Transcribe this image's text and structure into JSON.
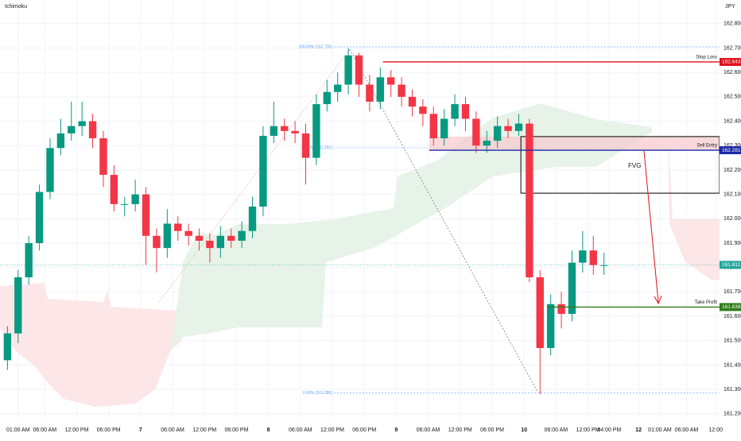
{
  "chart_data": {
    "type": "candlestick",
    "indicator": "Ichimoku",
    "currency": "JPY",
    "up_color": "#089981",
    "down_color": "#f23645",
    "grid": true,
    "x": [
      -1,
      1,
      3,
      5,
      7,
      9,
      11,
      13,
      15,
      17,
      19,
      21,
      23,
      25,
      27,
      29,
      31,
      33,
      35,
      37,
      39,
      41,
      43,
      45,
      47,
      49,
      51,
      53,
      55,
      57,
      59,
      61,
      63,
      65,
      67,
      69,
      71,
      73,
      75,
      77,
      79,
      81,
      83,
      85,
      87,
      89,
      91,
      93,
      95,
      97,
      99,
      101,
      103,
      105,
      107,
      109,
      111
    ],
    "open": [
      161.42,
      161.53,
      161.76,
      161.9,
      162.11,
      162.29,
      162.35,
      162.38,
      162.4,
      162.33,
      162.18,
      162.06,
      162.06,
      162.1,
      161.93,
      161.88,
      161.98,
      161.95,
      161.93,
      161.91,
      161.88,
      161.93,
      161.91,
      161.95,
      162.05,
      162.34,
      162.38,
      162.36,
      162.35,
      162.25,
      162.47,
      162.52,
      162.55,
      162.67,
      162.55,
      162.48,
      162.58,
      162.55,
      162.5,
      162.46,
      162.43,
      162.33,
      162.41,
      162.47,
      162.41,
      162.3,
      162.32,
      162.38,
      162.36,
      162.39,
      161.76,
      161.47,
      161.65,
      161.61,
      161.82,
      161.87,
      161.81
    ],
    "high": [
      161.56,
      161.79,
      161.93,
      162.14,
      162.33,
      162.41,
      162.48,
      162.48,
      162.43,
      162.36,
      162.22,
      162.09,
      162.16,
      162.13,
      161.96,
      162.04,
      162.01,
      161.98,
      161.96,
      161.94,
      161.97,
      161.96,
      161.99,
      162.09,
      162.38,
      162.48,
      162.41,
      162.4,
      162.39,
      162.51,
      162.57,
      162.6,
      162.7,
      162.68,
      162.59,
      162.62,
      162.61,
      162.58,
      162.53,
      162.49,
      162.46,
      162.45,
      162.51,
      162.5,
      162.44,
      162.36,
      162.42,
      162.41,
      162.43,
      162.41,
      161.79,
      161.69,
      161.7,
      161.87,
      161.95,
      161.93,
      161.86
    ],
    "low": [
      161.38,
      161.49,
      161.73,
      161.87,
      162.08,
      162.26,
      162.32,
      162.34,
      162.29,
      162.13,
      162.03,
      162.01,
      162.03,
      161.81,
      161.78,
      161.84,
      161.91,
      161.89,
      161.87,
      161.82,
      161.84,
      161.88,
      161.88,
      161.92,
      162.01,
      162.31,
      162.32,
      162.31,
      162.14,
      162.22,
      162.44,
      162.48,
      162.51,
      162.5,
      162.44,
      162.45,
      162.5,
      162.46,
      162.42,
      162.38,
      162.3,
      162.3,
      162.38,
      162.36,
      162.27,
      162.27,
      162.29,
      162.33,
      162.34,
      161.74,
      161.28,
      161.44,
      161.55,
      161.58,
      161.78,
      161.77,
      161.77
    ],
    "close": [
      161.53,
      161.76,
      161.9,
      162.11,
      162.29,
      162.35,
      162.38,
      162.4,
      162.33,
      162.18,
      162.06,
      162.06,
      162.1,
      161.93,
      161.88,
      161.98,
      161.95,
      161.93,
      161.91,
      161.88,
      161.93,
      161.91,
      161.95,
      162.05,
      162.34,
      162.38,
      162.36,
      162.35,
      162.25,
      162.47,
      162.52,
      162.55,
      162.67,
      162.55,
      162.48,
      162.58,
      162.55,
      162.5,
      162.46,
      162.43,
      162.33,
      162.41,
      162.47,
      162.41,
      162.3,
      162.32,
      162.38,
      162.36,
      162.39,
      161.76,
      161.47,
      161.65,
      161.61,
      161.82,
      161.87,
      161.81,
      161.81
    ],
    "xlim": [
      -2.4,
      132.7
    ],
    "ylim": [
      161.18,
      162.897
    ],
    "xticks": [
      {
        "value": 1,
        "label": "01:00 AM"
      },
      {
        "value": 6,
        "label": "06:00 AM"
      },
      {
        "value": 12,
        "label": "12:00 PM"
      },
      {
        "value": 18,
        "label": "06:00 PM"
      },
      {
        "value": 24,
        "label": "7"
      },
      {
        "value": 30,
        "label": "06:00 AM"
      },
      {
        "value": 36,
        "label": "12:00 PM"
      },
      {
        "value": 42,
        "label": "06:00 PM"
      },
      {
        "value": 48,
        "label": "8"
      },
      {
        "value": 54,
        "label": "06:00 AM"
      },
      {
        "value": 60,
        "label": "12:00 PM"
      },
      {
        "value": 66,
        "label": "06:00 PM"
      },
      {
        "value": 72,
        "label": "9"
      },
      {
        "value": 78,
        "label": "06:00 AM"
      },
      {
        "value": 84,
        "label": "12:00 PM"
      },
      {
        "value": 90,
        "label": "06:00 PM"
      },
      {
        "value": 96,
        "label": "10"
      },
      {
        "value": 102,
        "label": "06:00 AM"
      },
      {
        "value": 108,
        "label": "12:00 PM"
      },
      {
        "value": 112,
        "label": "04:00 PM"
      },
      {
        "value": 117.5,
        "label": "12"
      },
      {
        "value": 121.5,
        "label": "01:00 AM"
      },
      {
        "value": 126.5,
        "label": "06:00 AM"
      },
      {
        "value": 132,
        "label": "12:00"
      }
    ],
    "yticks": [
      {
        "value": 161.2,
        "label": "161.200"
      },
      {
        "value": 161.3,
        "label": "161.300"
      },
      {
        "value": 161.4,
        "label": "161.400"
      },
      {
        "value": 161.5,
        "label": "161.500"
      },
      {
        "value": 161.6,
        "label": "161.600"
      },
      {
        "value": 161.7,
        "label": "161.700"
      },
      {
        "value": 161.8,
        "label": "161.800"
      },
      {
        "value": 161.9,
        "label": "161.900"
      },
      {
        "value": 162.0,
        "label": "162.000"
      },
      {
        "value": 162.1,
        "label": "162.100"
      },
      {
        "value": 162.2,
        "label": "162.200"
      },
      {
        "value": 162.3,
        "label": "162.300"
      },
      {
        "value": 162.4,
        "label": "162.400"
      },
      {
        "value": 162.5,
        "label": "162.500"
      },
      {
        "value": 162.6,
        "label": "162.600"
      },
      {
        "value": 162.7,
        "label": "162.700"
      },
      {
        "value": 162.8,
        "label": "162.800"
      }
    ],
    "levels": [
      {
        "label": "Stop Loss",
        "value": 162.643,
        "color": "#e0101b",
        "from": 69.5
      },
      {
        "label": "Sell Entry",
        "value": 162.281,
        "color": "#1a2aa8",
        "from": 78.2
      },
      {
        "label": "Take Profit",
        "value": 161.638,
        "color": "#2e7d1a",
        "from": 100.3
      }
    ],
    "current_price": {
      "value": 161.811,
      "color": "#26a69a"
    },
    "fib_levels": [
      {
        "label": "100.00% (162.705)",
        "value": 162.705
      },
      {
        "label": "71.00% (162.291)",
        "value": 162.291
      },
      {
        "label": "0.00% (161.286)",
        "value": 161.286
      }
    ],
    "fvg": {
      "label": "FVG",
      "top": 162.337,
      "bottom": 162.105,
      "from": 95.4
    }
  }
}
